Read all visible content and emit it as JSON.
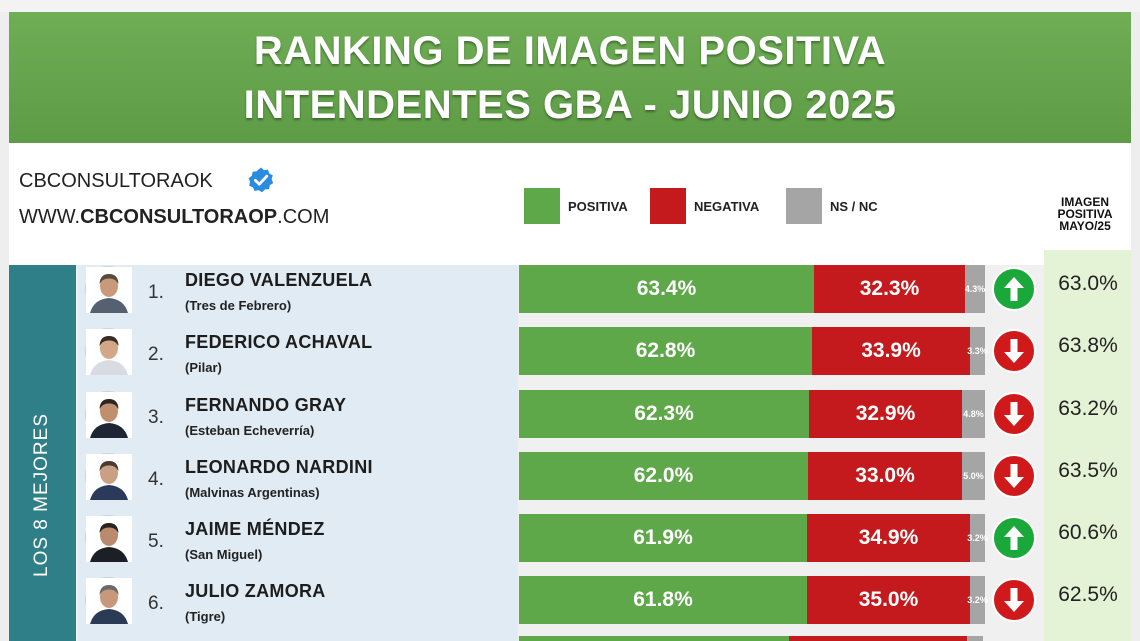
{
  "header": {
    "title_line1": "RANKING DE IMAGEN POSITIVA",
    "title_line2": "INTENDENTES GBA - JUNIO 2025"
  },
  "branding": {
    "account": "CBCONSULTORAOK",
    "website_prefix": "WWW.",
    "website_bold": "CBCONSULTORAOP",
    "website_suffix": ".COM",
    "verified_icon": "verified-badge-icon"
  },
  "colors": {
    "positive": "#5fa84a",
    "negative": "#c41a1d",
    "nsnc": "#a5a5a5",
    "banner": "#65a44c",
    "strip": "#2f7f88",
    "arrow_up": "#1aa83a",
    "arrow_down": "#d0191b"
  },
  "legend": {
    "positive": "POSITIVA",
    "negative": "NEGATIVA",
    "nsnc": "NS / NC"
  },
  "mayo_header": [
    "IMAGEN",
    "POSITIVA",
    "MAYO/25"
  ],
  "group_label": "LOS 8 MEJORES",
  "chart_data": {
    "type": "bar",
    "stacked": true,
    "orientation": "horizontal",
    "title": "RANKING DE IMAGEN POSITIVA INTENDENTES GBA - JUNIO 2025",
    "categories": [
      "DIEGO VALENZUELA",
      "FEDERICO ACHAVAL",
      "FERNANDO GRAY",
      "LEONARDO NARDINI",
      "JAIME MÉNDEZ",
      "JULIO ZAMORA"
    ],
    "series": [
      {
        "name": "POSITIVA",
        "values": [
          63.4,
          62.8,
          62.3,
          62.0,
          61.9,
          61.8
        ]
      },
      {
        "name": "NEGATIVA",
        "values": [
          32.3,
          33.9,
          32.9,
          33.0,
          34.9,
          35.0
        ]
      },
      {
        "name": "NS / NC",
        "values": [
          4.3,
          3.3,
          4.8,
          5.0,
          3.2,
          3.2
        ]
      }
    ],
    "rows": [
      {
        "rank": "1.",
        "name": "DIEGO VALENZUELA",
        "district": "(Tres de Febrero)",
        "positive": 63.4,
        "positive_label": "63.4%",
        "negative": 32.3,
        "negative_label": "32.3%",
        "nsnc": 4.3,
        "nsnc_label": "4.3%",
        "trend": "up",
        "mayo": "63.0%"
      },
      {
        "rank": "2.",
        "name": "FEDERICO ACHAVAL",
        "district": "(Pilar)",
        "positive": 62.8,
        "positive_label": "62.8%",
        "negative": 33.9,
        "negative_label": "33.9%",
        "nsnc": 3.3,
        "nsnc_label": "3.3%",
        "trend": "down",
        "mayo": "63.8%"
      },
      {
        "rank": "3.",
        "name": "FERNANDO GRAY",
        "district": "(Esteban Echeverría)",
        "positive": 62.3,
        "positive_label": "62.3%",
        "negative": 32.9,
        "negative_label": "32.9%",
        "nsnc": 4.8,
        "nsnc_label": "4.8%",
        "trend": "down",
        "mayo": "63.2%"
      },
      {
        "rank": "4.",
        "name": "LEONARDO NARDINI",
        "district": "(Malvinas Argentinas)",
        "positive": 62.0,
        "positive_label": "62.0%",
        "negative": 33.0,
        "negative_label": "33.0%",
        "nsnc": 5.0,
        "nsnc_label": "5.0%",
        "trend": "down",
        "mayo": "63.5%"
      },
      {
        "rank": "5.",
        "name": "JAIME MÉNDEZ",
        "district": "(San Miguel)",
        "positive": 61.9,
        "positive_label": "61.9%",
        "negative": 34.9,
        "negative_label": "34.9%",
        "nsnc": 3.2,
        "nsnc_label": "3.2%",
        "trend": "up",
        "mayo": "60.6%"
      },
      {
        "rank": "6.",
        "name": "JULIO ZAMORA",
        "district": "(Tigre)",
        "positive": 61.8,
        "positive_label": "61.8%",
        "negative": 35.0,
        "negative_label": "35.0%",
        "nsnc": 3.2,
        "nsnc_label": "3.2%",
        "trend": "down",
        "mayo": "62.5%"
      }
    ],
    "legend": "top",
    "grid": false
  }
}
